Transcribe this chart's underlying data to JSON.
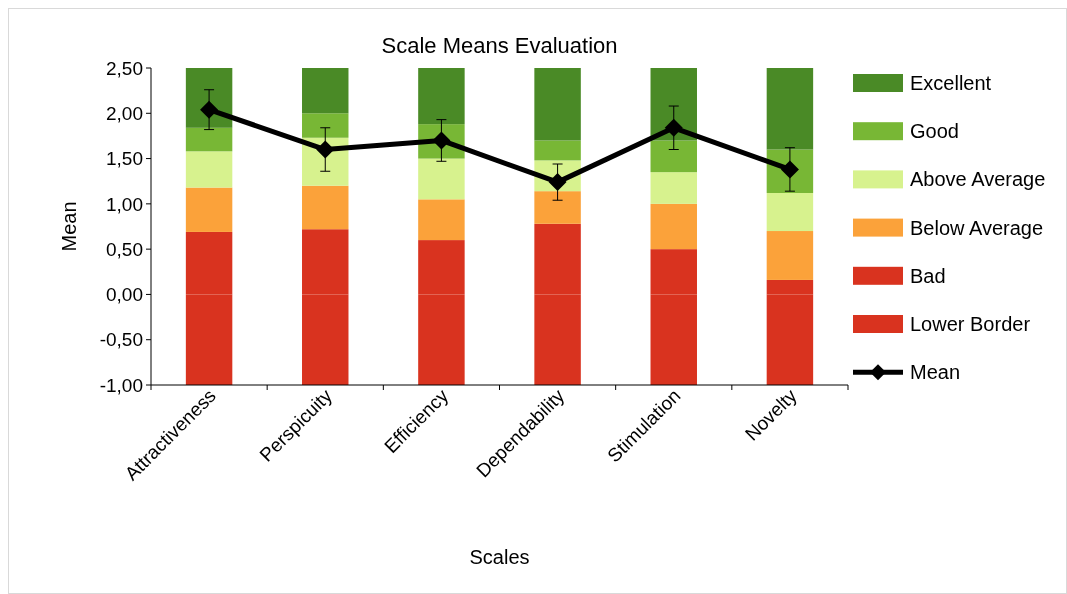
{
  "chart_data": {
    "type": "bar",
    "stacked": true,
    "title": "Scale Means Evaluation",
    "xlabel": "Scales",
    "ylabel": "Mean",
    "categories": [
      "Attractiveness",
      "Perspicuity",
      "Efficiency",
      "Dependability",
      "Stimulation",
      "Novelty"
    ],
    "series": [
      {
        "name": "Lower Border",
        "color": "#d9331f",
        "values": [
          -1,
          -1,
          -1,
          -1,
          -1,
          -1
        ]
      },
      {
        "name": "Bad",
        "color": "#d9331f",
        "values": [
          0.69,
          0.72,
          0.6,
          0.78,
          0.5,
          0.16
        ]
      },
      {
        "name": "Below Average",
        "color": "#fba23a",
        "values": [
          0.49,
          0.48,
          0.45,
          0.36,
          0.5,
          0.54
        ]
      },
      {
        "name": "Above Average",
        "color": "#d7f28e",
        "values": [
          0.4,
          0.53,
          0.45,
          0.34,
          0.35,
          0.42
        ]
      },
      {
        "name": "Good",
        "color": "#78b735",
        "values": [
          0.26,
          0.27,
          0.38,
          0.22,
          0.35,
          0.48
        ]
      },
      {
        "name": "Excellent",
        "color": "#4a8a26",
        "values": [
          0.66,
          0.5,
          0.62,
          0.8,
          0.8,
          0.9
        ]
      },
      {
        "name": "Mean",
        "type": "line",
        "color": "#000000",
        "marker": "diamond",
        "values": [
          2.04,
          1.6,
          1.7,
          1.24,
          1.84,
          1.38
        ],
        "errors": [
          0.22,
          0.24,
          0.23,
          0.2,
          0.24,
          0.24
        ]
      }
    ],
    "ylim": [
      -1,
      2.5
    ],
    "yticks": [
      {
        "value": -1,
        "label": "-1,00"
      },
      {
        "value": -0.5,
        "label": "-0,50"
      },
      {
        "value": 0,
        "label": "0,00"
      },
      {
        "value": 0.5,
        "label": "0,50"
      },
      {
        "value": 1,
        "label": "1,00"
      },
      {
        "value": 1.5,
        "label": "1,50"
      },
      {
        "value": 2,
        "label": "2,00"
      },
      {
        "value": 2.5,
        "label": "2,50"
      }
    ],
    "grid": false,
    "legend": "right"
  }
}
